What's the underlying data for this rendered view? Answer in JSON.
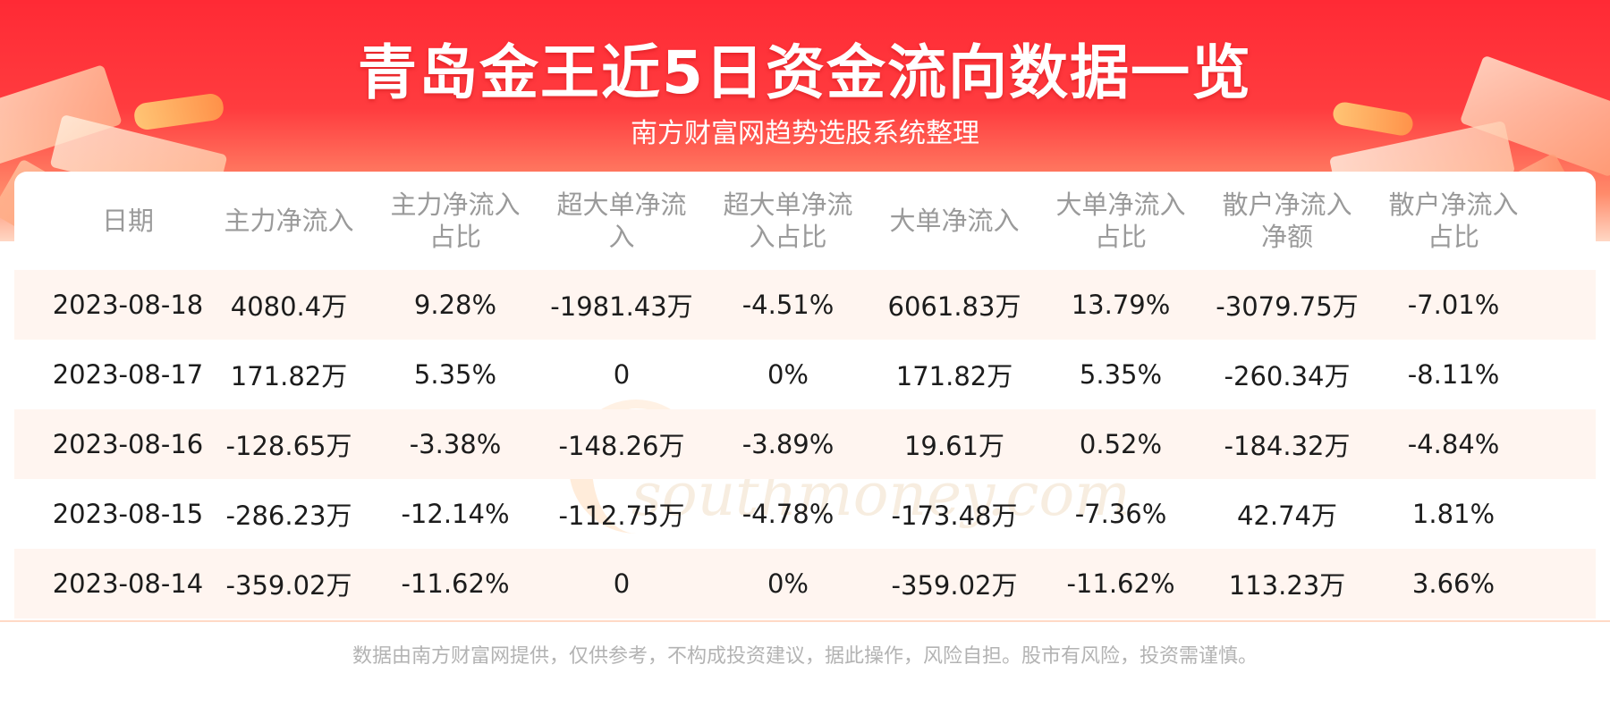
{
  "header": {
    "title": "青岛金王近5日资金流向数据一览",
    "subtitle": "南方财富网趋势选股系统整理"
  },
  "watermark": {
    "cn": "南方财富网",
    "en": "southmoney.com"
  },
  "table": {
    "columns": [
      [
        "日期"
      ],
      [
        "主力净流入"
      ],
      [
        "主力净流入",
        "占比"
      ],
      [
        "超大单净流",
        "入"
      ],
      [
        "超大单净流",
        "入占比"
      ],
      [
        "大单净流入"
      ],
      [
        "大单净流入",
        "占比"
      ],
      [
        "散户净流入",
        "净额"
      ],
      [
        "散户净流入",
        "占比"
      ]
    ],
    "rows": [
      [
        "2023-08-18",
        "4080.4万",
        "9.28%",
        "-1981.43万",
        "-4.51%",
        "6061.83万",
        "13.79%",
        "-3079.75万",
        "-7.01%"
      ],
      [
        "2023-08-17",
        "171.82万",
        "5.35%",
        "0",
        "0%",
        "171.82万",
        "5.35%",
        "-260.34万",
        "-8.11%"
      ],
      [
        "2023-08-16",
        "-128.65万",
        "-3.38%",
        "-148.26万",
        "-3.89%",
        "19.61万",
        "0.52%",
        "-184.32万",
        "-4.84%"
      ],
      [
        "2023-08-15",
        "-286.23万",
        "-12.14%",
        "-112.75万",
        "-4.78%",
        "-173.48万",
        "-7.36%",
        "42.74万",
        "1.81%"
      ],
      [
        "2023-08-14",
        "-359.02万",
        "-11.62%",
        "0",
        "0%",
        "-359.02万",
        "-11.62%",
        "113.23万",
        "3.66%"
      ]
    ]
  },
  "footer": {
    "disclaimer": "数据由南方财富网提供，仅供参考，不构成投资建议，据此操作，风险自担。股市有风险，投资需谨慎。"
  },
  "colors": {
    "banner_red": "#ff2a35",
    "row_alt": "#fff5f0",
    "header_text": "#9a9a9a"
  }
}
